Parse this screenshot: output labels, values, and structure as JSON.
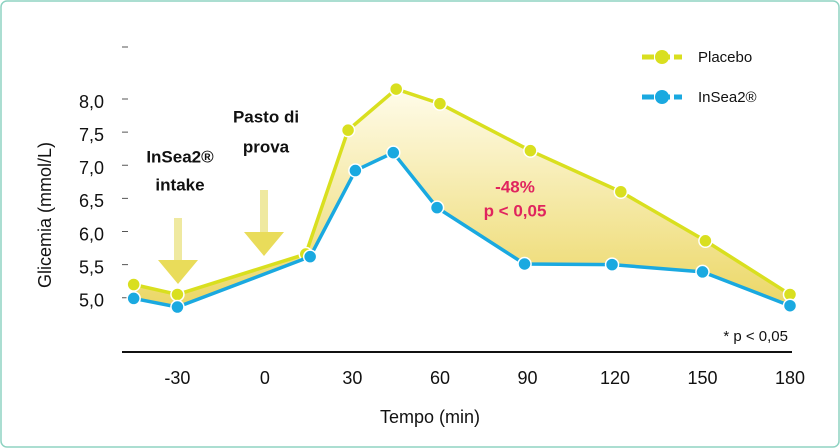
{
  "chart_data": {
    "type": "line",
    "y_label": "Glicemia (mmol/L)",
    "x_label": "Tempo (min)",
    "annotations": [
      {
        "lines": [
          "InSea2®",
          "intake"
        ],
        "x": -30
      },
      {
        "lines": [
          "Pasto di",
          "prova"
        ],
        "x": 0
      },
      {
        "lines": [
          "-48%",
          "p < 0,05"
        ]
      },
      {
        "lines": [
          "* p < 0,05"
        ]
      }
    ],
    "xlim": [
      -49,
      180
    ],
    "xticks": [
      -30,
      0,
      30,
      60,
      90,
      120,
      150,
      180
    ],
    "ylim": [
      4.8,
      8.8
    ],
    "yticks": [
      {
        "value": 5,
        "label": "5,0"
      },
      {
        "value": 5.5,
        "label": "5,5"
      },
      {
        "value": 6,
        "label": "6,0"
      },
      {
        "value": 6.5,
        "label": "6,5"
      },
      {
        "value": 7,
        "label": "7,0"
      },
      {
        "value": 7.5,
        "label": "7,5"
      },
      {
        "value": 8,
        "label": "8,0"
      }
    ],
    "legend": "upper right",
    "series": [
      {
        "name": "Placebo",
        "color": "#d9df1f",
        "x": [
          -45,
          -30,
          14,
          28.5,
          45,
          60,
          91,
          122,
          151,
          180
        ],
        "values": [
          5.2,
          5.05,
          5.66,
          7.53,
          8.15,
          7.93,
          7.22,
          6.6,
          5.86,
          5.05
        ]
      },
      {
        "name": "InSea2®",
        "color": "#1aa9e0",
        "x": [
          -45,
          -30,
          15.5,
          31,
          44,
          59,
          89,
          119,
          150,
          180
        ],
        "values": [
          4.99,
          4.86,
          5.62,
          6.92,
          7.19,
          6.36,
          5.51,
          5.5,
          5.39,
          4.88
        ]
      }
    ]
  }
}
